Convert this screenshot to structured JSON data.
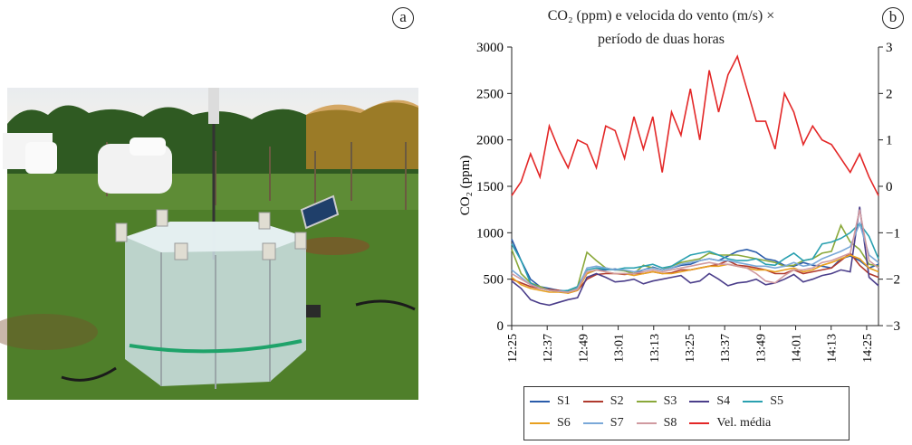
{
  "panel_labels": {
    "a": "a",
    "b": "b"
  },
  "chart_data": {
    "type": "line",
    "title": "CO₂ (ppm) e velocida do vento (m/s) × período de duas horas",
    "title_line1": "CO₂ (ppm) e velocida do vento (m/s) ×",
    "title_line2": "período de duas horas",
    "ylabel": "CO₂ (ppm)",
    "ylim": [
      0,
      3000
    ],
    "y_ticks": [
      "0",
      "500",
      "1000",
      "1500",
      "2000",
      "2500",
      "3000"
    ],
    "y2lim": [
      -3,
      3
    ],
    "y2_ticks": [
      "−3",
      "−2",
      "−1",
      "0",
      "1",
      "2",
      "3"
    ],
    "x_ticks": [
      "12:25",
      "12:37",
      "12:49",
      "13:01",
      "13:13",
      "13:25",
      "13:37",
      "13:49",
      "14:01",
      "14:13",
      "14:25"
    ],
    "x_range_minutes": [
      0,
      124
    ],
    "x_tick_minutes": [
      0,
      12,
      24,
      36,
      48,
      60,
      72,
      84,
      96,
      108,
      120
    ],
    "legend_position": "bottom",
    "series": [
      {
        "name": "S1",
        "color": "#2a5caa",
        "axis": "left",
        "values": [
          930,
          700,
          500,
          420,
          400,
          380,
          370,
          400,
          560,
          600,
          600,
          610,
          590,
          560,
          600,
          630,
          600,
          620,
          650,
          660,
          700,
          720,
          700,
          750,
          800,
          820,
          790,
          720,
          700,
          650,
          640,
          680,
          650,
          640,
          620,
          720,
          750,
          700,
          620,
          660
        ]
      },
      {
        "name": "S2",
        "color": "#b03a2e",
        "axis": "left",
        "values": [
          500,
          460,
          420,
          400,
          390,
          380,
          350,
          380,
          500,
          550,
          560,
          560,
          550,
          560,
          560,
          580,
          560,
          570,
          600,
          600,
          620,
          640,
          660,
          700,
          650,
          640,
          620,
          600,
          560,
          560,
          600,
          560,
          580,
          600,
          620,
          700,
          780,
          650,
          560,
          520
        ]
      },
      {
        "name": "S3",
        "color": "#8aa83a",
        "axis": "left",
        "values": [
          820,
          560,
          460,
          420,
          380,
          370,
          360,
          420,
          790,
          700,
          620,
          600,
          590,
          560,
          650,
          620,
          600,
          640,
          680,
          700,
          720,
          780,
          760,
          760,
          760,
          740,
          720,
          700,
          680,
          640,
          650,
          700,
          720,
          780,
          800,
          1080,
          900,
          820,
          660,
          640
        ]
      },
      {
        "name": "S4",
        "color": "#4b3e8a",
        "axis": "left",
        "values": [
          480,
          400,
          280,
          240,
          220,
          250,
          280,
          300,
          520,
          560,
          520,
          470,
          480,
          500,
          450,
          480,
          500,
          520,
          540,
          460,
          480,
          560,
          500,
          430,
          460,
          470,
          500,
          440,
          460,
          500,
          550,
          470,
          500,
          540,
          560,
          600,
          580,
          1280,
          520,
          430
        ]
      },
      {
        "name": "S5",
        "color": "#2aa0b0",
        "axis": "left",
        "values": [
          880,
          700,
          460,
          400,
          380,
          370,
          380,
          420,
          600,
          620,
          610,
          600,
          620,
          620,
          640,
          660,
          620,
          640,
          700,
          760,
          780,
          800,
          760,
          720,
          700,
          700,
          720,
          660,
          650,
          720,
          780,
          700,
          720,
          880,
          900,
          940,
          1000,
          1100,
          960,
          720
        ]
      },
      {
        "name": "S6",
        "color": "#e8a020",
        "axis": "left",
        "values": [
          520,
          440,
          400,
          380,
          360,
          360,
          350,
          380,
          560,
          600,
          580,
          560,
          560,
          540,
          560,
          580,
          560,
          560,
          580,
          600,
          620,
          640,
          640,
          660,
          640,
          620,
          600,
          600,
          580,
          600,
          620,
          580,
          600,
          650,
          680,
          720,
          760,
          720,
          620,
          580
        ]
      },
      {
        "name": "S7",
        "color": "#7aa8d8",
        "axis": "left",
        "values": [
          600,
          520,
          440,
          400,
          380,
          370,
          360,
          400,
          620,
          640,
          620,
          600,
          600,
          580,
          600,
          620,
          600,
          620,
          660,
          680,
          700,
          720,
          700,
          700,
          680,
          660,
          640,
          640,
          620,
          640,
          680,
          640,
          660,
          720,
          760,
          800,
          850,
          1100,
          760,
          680
        ]
      },
      {
        "name": "S8",
        "color": "#d09aa0",
        "axis": "left",
        "values": [
          560,
          500,
          440,
          400,
          380,
          370,
          360,
          390,
          580,
          600,
          580,
          560,
          560,
          560,
          580,
          600,
          580,
          600,
          620,
          640,
          660,
          680,
          660,
          660,
          640,
          620,
          560,
          480,
          460,
          540,
          600,
          600,
          620,
          680,
          700,
          740,
          780,
          1250,
          700,
          620
        ]
      },
      {
        "name": "Vel. média",
        "color": "#e32727",
        "axis": "right",
        "values": [
          -0.2,
          0.1,
          0.7,
          0.2,
          1.3,
          0.8,
          0.4,
          1.0,
          0.9,
          0.4,
          1.3,
          1.2,
          0.6,
          1.5,
          0.8,
          1.5,
          0.3,
          1.6,
          1.1,
          2.1,
          1.0,
          2.5,
          1.6,
          2.4,
          2.8,
          2.1,
          1.4,
          1.4,
          0.8,
          2.0,
          1.6,
          0.9,
          1.3,
          1.0,
          0.9,
          0.6,
          0.3,
          0.7,
          0.2,
          -0.2
        ]
      }
    ]
  }
}
